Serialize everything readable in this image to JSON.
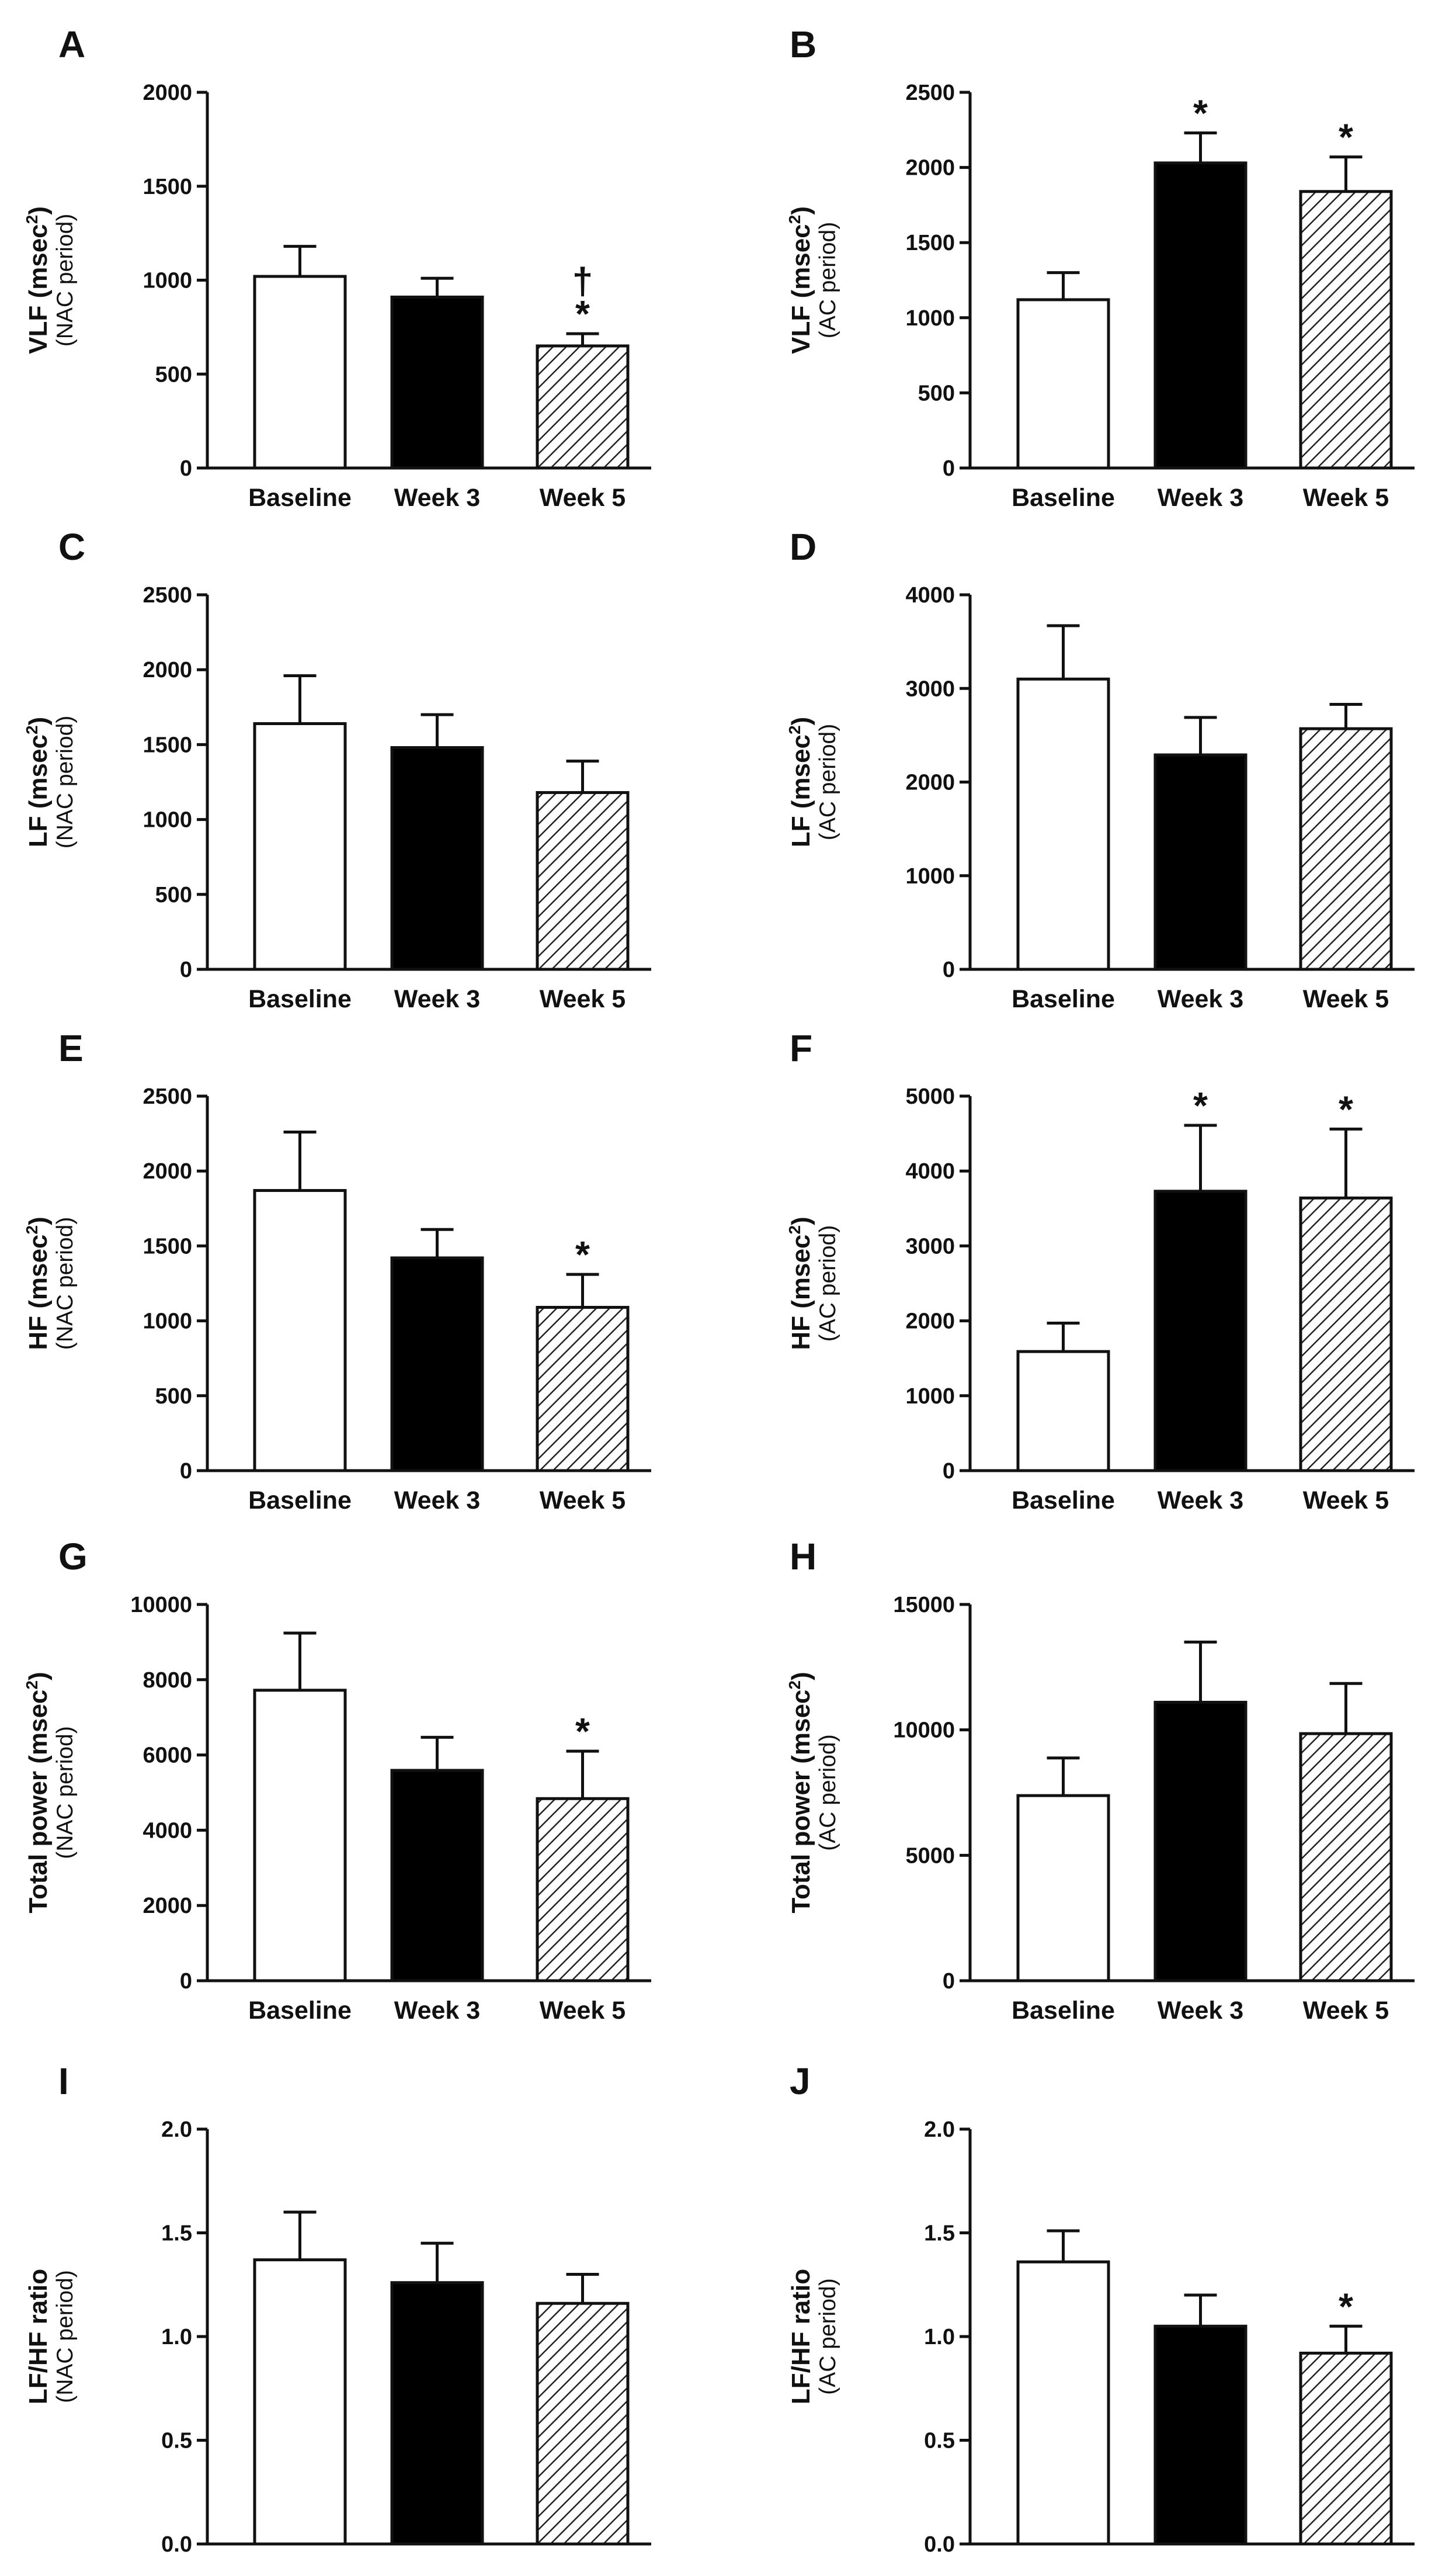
{
  "chart_data": [
    {
      "type": "bar",
      "panel": "A",
      "ylabel_main": "VLF (msec",
      "ylabel_sup": "2",
      "ylabel_close": ")",
      "ylabel_sub": "(NAC period)",
      "categories": [
        "Baseline",
        "Week 3",
        "Week 5"
      ],
      "values": [
        1020,
        910,
        650
      ],
      "errors": [
        160,
        100,
        65
      ],
      "ylim": [
        0,
        2000
      ],
      "ticks": [
        "0",
        "500",
        "1000",
        "1500",
        "2000"
      ],
      "annotations": [
        "",
        "",
        "*"
      ],
      "annotations_top": [
        "",
        "",
        "†"
      ]
    },
    {
      "type": "bar",
      "panel": "B",
      "ylabel_main": "VLF (msec",
      "ylabel_sup": "2",
      "ylabel_close": ")",
      "ylabel_sub": "(AC period)",
      "categories": [
        "Baseline",
        "Week 3",
        "Week 5"
      ],
      "values": [
        1120,
        2030,
        1840
      ],
      "errors": [
        180,
        200,
        230
      ],
      "ylim": [
        0,
        2500
      ],
      "ticks": [
        "0",
        "500",
        "1000",
        "1500",
        "2000",
        "2500"
      ],
      "annotations": [
        "",
        "*",
        "*"
      ],
      "annotations_top": [
        "",
        "",
        ""
      ]
    },
    {
      "type": "bar",
      "panel": "C",
      "ylabel_main": "LF (msec",
      "ylabel_sup": "2",
      "ylabel_close": ")",
      "ylabel_sub": "(NAC period)",
      "categories": [
        "Baseline",
        "Week 3",
        "Week 5"
      ],
      "values": [
        1640,
        1480,
        1180
      ],
      "errors": [
        320,
        220,
        210
      ],
      "ylim": [
        0,
        2500
      ],
      "ticks": [
        "0",
        "500",
        "1000",
        "1500",
        "2000",
        "2500"
      ],
      "annotations": [
        "",
        "",
        ""
      ],
      "annotations_top": [
        "",
        "",
        ""
      ]
    },
    {
      "type": "bar",
      "panel": "D",
      "ylabel_main": "LF (msec",
      "ylabel_sup": "2",
      "ylabel_close": ")",
      "ylabel_sub": "(AC period)",
      "categories": [
        "Baseline",
        "Week 3",
        "Week 5"
      ],
      "values": [
        3100,
        2290,
        2570
      ],
      "errors": [
        570,
        400,
        260
      ],
      "ylim": [
        0,
        4000
      ],
      "ticks": [
        "0",
        "1000",
        "2000",
        "3000",
        "4000"
      ],
      "annotations": [
        "",
        "",
        ""
      ],
      "annotations_top": [
        "",
        "",
        ""
      ]
    },
    {
      "type": "bar",
      "panel": "E",
      "ylabel_main": "HF (msec",
      "ylabel_sup": "2",
      "ylabel_close": ")",
      "ylabel_sub": "(NAC period)",
      "categories": [
        "Baseline",
        "Week 3",
        "Week 5"
      ],
      "values": [
        1870,
        1420,
        1090
      ],
      "errors": [
        390,
        190,
        220
      ],
      "ylim": [
        0,
        2500
      ],
      "ticks": [
        "0",
        "500",
        "1000",
        "1500",
        "2000",
        "2500"
      ],
      "annotations": [
        "",
        "",
        "*"
      ],
      "annotations_top": [
        "",
        "",
        ""
      ]
    },
    {
      "type": "bar",
      "panel": "F",
      "ylabel_main": "HF (msec",
      "ylabel_sup": "2",
      "ylabel_close": ")",
      "ylabel_sub": "(AC period)",
      "categories": [
        "Baseline",
        "Week 3",
        "Week 5"
      ],
      "values": [
        1590,
        3730,
        3640
      ],
      "errors": [
        380,
        880,
        920
      ],
      "ylim": [
        0,
        5000
      ],
      "ticks": [
        "0",
        "1000",
        "2000",
        "3000",
        "4000",
        "5000"
      ],
      "annotations": [
        "",
        "*",
        "*"
      ],
      "annotations_top": [
        "",
        "",
        ""
      ]
    },
    {
      "type": "bar",
      "panel": "G",
      "ylabel_main": "Total power (msec",
      "ylabel_sup": "2",
      "ylabel_close": ")",
      "ylabel_sub": "(NAC period)",
      "categories": [
        "Baseline",
        "Week 3",
        "Week 5"
      ],
      "values": [
        7720,
        5590,
        4840
      ],
      "errors": [
        1520,
        880,
        1260
      ],
      "ylim": [
        0,
        10000
      ],
      "ticks": [
        "0",
        "2000",
        "4000",
        "6000",
        "8000",
        "10000"
      ],
      "annotations": [
        "",
        "",
        "*"
      ],
      "annotations_top": [
        "",
        "",
        ""
      ]
    },
    {
      "type": "bar",
      "panel": "H",
      "ylabel_main": "Total power (msec",
      "ylabel_sup": "2",
      "ylabel_close": ")",
      "ylabel_sub": "(AC period)",
      "categories": [
        "Baseline",
        "Week 3",
        "Week 5"
      ],
      "values": [
        7380,
        11100,
        9850
      ],
      "errors": [
        1500,
        2400,
        2000
      ],
      "ylim": [
        0,
        15000
      ],
      "ticks": [
        "0",
        "5000",
        "10000",
        "15000"
      ],
      "annotations": [
        "",
        "",
        ""
      ],
      "annotations_top": [
        "",
        "",
        ""
      ]
    },
    {
      "type": "bar",
      "panel": "I",
      "ylabel_main": "LF/HF ratio",
      "ylabel_sup": "",
      "ylabel_close": "",
      "ylabel_sub": "(NAC period)",
      "categories": [
        "Baseline",
        "Week 3",
        "Week 5"
      ],
      "values": [
        1.37,
        1.26,
        1.16
      ],
      "errors": [
        0.23,
        0.19,
        0.14
      ],
      "ylim": [
        0,
        2.0
      ],
      "ticks": [
        "0.0",
        "0.5",
        "1.0",
        "1.5",
        "2.0"
      ],
      "annotations": [
        "",
        "",
        ""
      ],
      "annotations_top": [
        "",
        "",
        ""
      ]
    },
    {
      "type": "bar",
      "panel": "J",
      "ylabel_main": "LF/HF ratio",
      "ylabel_sup": "",
      "ylabel_close": "",
      "ylabel_sub": "(AC period)",
      "categories": [
        "Baseline",
        "Week 3",
        "Week 5"
      ],
      "values": [
        1.36,
        1.05,
        0.92
      ],
      "errors": [
        0.15,
        0.15,
        0.13
      ],
      "ylim": [
        0,
        2.0
      ],
      "ticks": [
        "0.0",
        "0.5",
        "1.0",
        "1.5",
        "2.0"
      ],
      "annotations": [
        "",
        "",
        "*"
      ],
      "annotations_top": [
        "",
        "",
        ""
      ]
    }
  ]
}
